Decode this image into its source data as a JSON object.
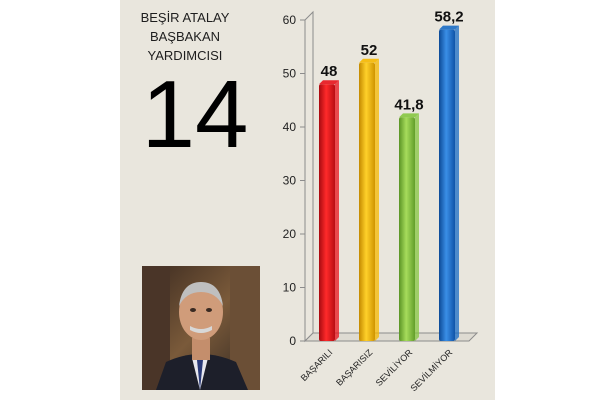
{
  "person": {
    "name": "BEŞİR ATALAY",
    "title": "BAŞBAKAN YARDIMCISI",
    "rank_number": "14"
  },
  "chart_data": {
    "type": "bar",
    "title": "",
    "xlabel": "",
    "ylabel": "",
    "categories": [
      "BAŞARILI",
      "BAŞARISIZ",
      "SEVİLİYOR",
      "SEVİLMİYOR"
    ],
    "values": [
      48,
      52,
      41.8,
      58.2
    ],
    "value_labels": [
      "48",
      "52",
      "41,8",
      "58,2"
    ],
    "colors": [
      "#e8141c",
      "#f6b800",
      "#86c640",
      "#1a6cc4"
    ],
    "ylim": [
      0,
      60
    ],
    "yticks": [
      0,
      10,
      20,
      30,
      40,
      50,
      60
    ],
    "grid": false,
    "legend": "none",
    "style": "3d-cylinder"
  }
}
